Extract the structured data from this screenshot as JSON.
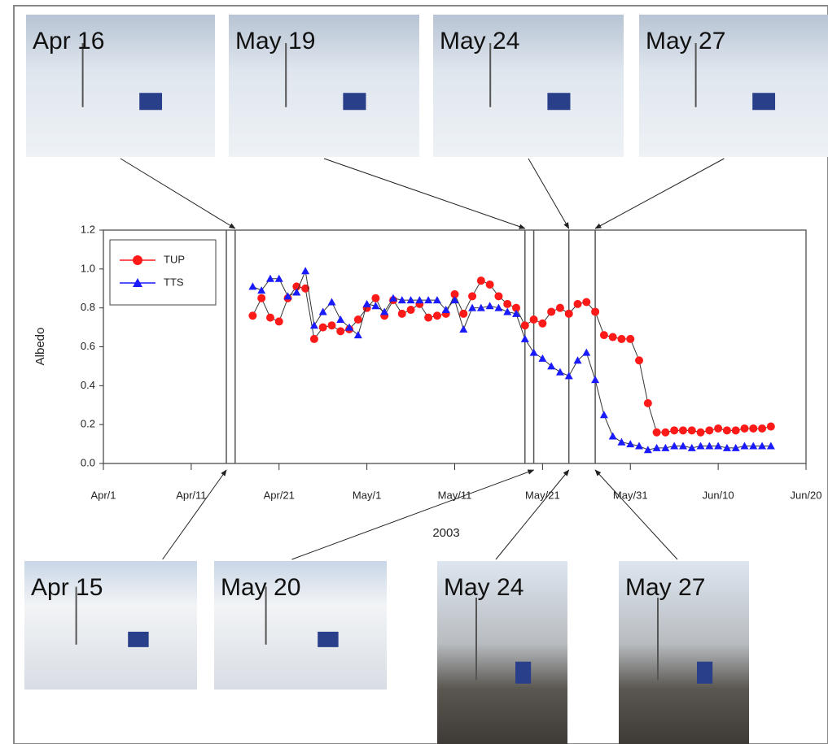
{
  "chart_data": {
    "type": "line",
    "x_label": "2003",
    "y_label": "Albedo",
    "x": [
      "2003-04-18",
      "2003-04-19",
      "2003-04-20",
      "2003-04-21",
      "2003-04-22",
      "2003-04-23",
      "2003-04-24",
      "2003-04-25",
      "2003-04-26",
      "2003-04-27",
      "2003-04-28",
      "2003-04-29",
      "2003-04-30",
      "2003-05-01",
      "2003-05-02",
      "2003-05-03",
      "2003-05-04",
      "2003-05-05",
      "2003-05-06",
      "2003-05-07",
      "2003-05-08",
      "2003-05-09",
      "2003-05-10",
      "2003-05-11",
      "2003-05-12",
      "2003-05-13",
      "2003-05-14",
      "2003-05-15",
      "2003-05-16",
      "2003-05-17",
      "2003-05-18",
      "2003-05-19",
      "2003-05-20",
      "2003-05-21",
      "2003-05-22",
      "2003-05-23",
      "2003-05-24",
      "2003-05-25",
      "2003-05-26",
      "2003-05-27",
      "2003-05-28",
      "2003-05-29",
      "2003-05-30",
      "2003-05-31",
      "2003-06-01",
      "2003-06-02",
      "2003-06-03",
      "2003-06-04",
      "2003-06-05",
      "2003-06-06",
      "2003-06-07",
      "2003-06-08",
      "2003-06-09",
      "2003-06-10",
      "2003-06-11",
      "2003-06-12",
      "2003-06-13",
      "2003-06-14",
      "2003-06-15",
      "2003-06-16"
    ],
    "series": [
      {
        "name": "TUP",
        "color": "#ff1a1a",
        "marker": "circle",
        "values": [
          0.76,
          0.85,
          0.75,
          0.73,
          0.85,
          0.91,
          0.9,
          0.64,
          0.7,
          0.71,
          0.68,
          0.69,
          0.74,
          0.8,
          0.85,
          0.76,
          0.84,
          0.77,
          0.79,
          0.82,
          0.75,
          0.76,
          0.77,
          0.87,
          0.77,
          0.86,
          0.94,
          0.92,
          0.86,
          0.82,
          0.8,
          0.71,
          0.74,
          0.72,
          0.78,
          0.8,
          0.77,
          0.82,
          0.83,
          0.78,
          0.66,
          0.65,
          0.64,
          0.64,
          0.53,
          0.31,
          0.16,
          0.16,
          0.17,
          0.17,
          0.17,
          0.16,
          0.17,
          0.18,
          0.17,
          0.17,
          0.18,
          0.18,
          0.18,
          0.19
        ]
      },
      {
        "name": "TTS",
        "color": "#1a1aff",
        "marker": "triangle",
        "values": [
          0.91,
          0.89,
          0.95,
          0.95,
          0.86,
          0.88,
          0.99,
          0.71,
          0.78,
          0.83,
          0.74,
          0.7,
          0.66,
          0.82,
          0.81,
          0.78,
          0.85,
          0.84,
          0.84,
          0.84,
          0.84,
          0.84,
          0.79,
          0.84,
          0.69,
          0.8,
          0.8,
          0.81,
          0.8,
          0.78,
          0.77,
          0.64,
          0.57,
          0.54,
          0.5,
          0.47,
          0.45,
          0.53,
          0.57,
          0.43,
          0.25,
          0.14,
          0.11,
          0.1,
          0.09,
          0.07,
          0.08,
          0.08,
          0.09,
          0.09,
          0.08,
          0.09,
          0.09,
          0.09,
          0.08,
          0.08,
          0.09,
          0.09,
          0.09,
          0.09
        ]
      }
    ],
    "xlim": [
      "2003-04-01",
      "2003-06-20"
    ],
    "xticks": [
      {
        "value": "2003-04-01",
        "label": "Apr/1"
      },
      {
        "value": "2003-04-11",
        "label": "Apr/11"
      },
      {
        "value": "2003-04-21",
        "label": "Apr/21"
      },
      {
        "value": "2003-05-01",
        "label": "May/1"
      },
      {
        "value": "2003-05-11",
        "label": "May/11"
      },
      {
        "value": "2003-05-21",
        "label": "May/21"
      },
      {
        "value": "2003-05-31",
        "label": "May/31"
      },
      {
        "value": "2003-06-10",
        "label": "Jun/10"
      },
      {
        "value": "2003-06-20",
        "label": "Jun/20"
      }
    ],
    "ylim": [
      0,
      1.2
    ],
    "yticks": [
      {
        "value": 0,
        "label": "0.0"
      },
      0.2,
      0.4,
      0.6,
      0.8,
      {
        "value": 1,
        "label": "1.0"
      },
      1.2
    ],
    "legend": "upper left",
    "markers": [
      "2003-04-15",
      "2003-04-16",
      "2003-05-19",
      "2003-05-20",
      "2003-05-24",
      "2003-05-27"
    ],
    "top_photos": [
      {
        "label": "Apr 16",
        "date": "2003-04-16"
      },
      {
        "label": "May 19",
        "date": "2003-05-19"
      },
      {
        "label": "May 24",
        "date": "2003-05-24"
      },
      {
        "label": "May 27",
        "date": "2003-05-27"
      }
    ],
    "bottom_photos": [
      {
        "label": "Apr 15",
        "date": "2003-04-15"
      },
      {
        "label": "May 20",
        "date": "2003-05-20"
      },
      {
        "label": "May 24",
        "date": "2003-05-24"
      },
      {
        "label": "May 27",
        "date": "2003-05-27"
      }
    ]
  }
}
